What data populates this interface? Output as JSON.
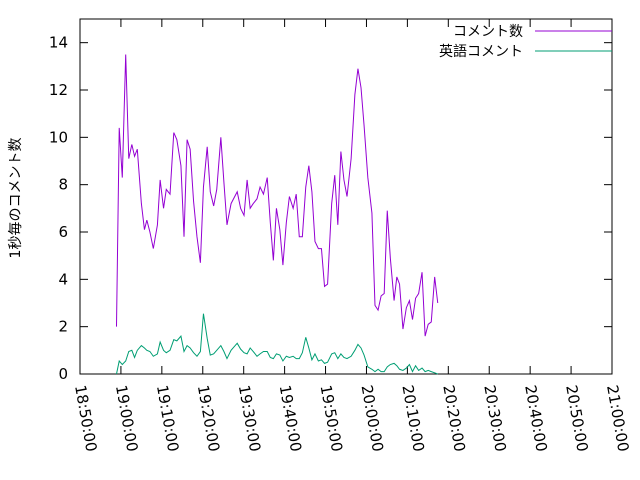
{
  "chart_data": {
    "type": "line",
    "title": "",
    "xlabel": "",
    "ylabel": "1秒毎のコメント数",
    "xlim": [
      "18:50:00",
      "21:00:00"
    ],
    "ylim": [
      0,
      15
    ],
    "x_ticks": [
      "18:50:00",
      "19:00:00",
      "19:10:00",
      "19:20:00",
      "19:30:00",
      "19:40:00",
      "19:50:00",
      "20:00:00",
      "20:10:00",
      "20:20:00",
      "20:30:00",
      "20:40:00",
      "20:50:00",
      "21:00:00"
    ],
    "y_ticks": [
      0,
      2,
      4,
      6,
      8,
      10,
      12,
      14
    ],
    "grid": false,
    "legend_position": "top-right",
    "series": [
      {
        "name": "コメント数",
        "color": "#9400d3",
        "points": [
          [
            "18:58:55",
            2.0
          ],
          [
            "18:59:35",
            10.4
          ],
          [
            "19:00:20",
            8.3
          ],
          [
            "19:01:10",
            13.5
          ],
          [
            "19:01:55",
            9.1
          ],
          [
            "19:02:40",
            9.7
          ],
          [
            "19:03:20",
            9.2
          ],
          [
            "19:04:00",
            9.5
          ],
          [
            "19:05:00",
            7.2
          ],
          [
            "19:05:45",
            6.1
          ],
          [
            "19:06:20",
            6.5
          ],
          [
            "19:07:05",
            6.0
          ],
          [
            "19:07:55",
            5.3
          ],
          [
            "19:08:55",
            6.3
          ],
          [
            "19:09:35",
            8.2
          ],
          [
            "19:10:25",
            7.0
          ],
          [
            "19:11:05",
            7.8
          ],
          [
            "19:12:00",
            7.6
          ],
          [
            "19:12:55",
            10.2
          ],
          [
            "19:13:40",
            9.9
          ],
          [
            "19:14:40",
            8.8
          ],
          [
            "19:15:25",
            5.8
          ],
          [
            "19:16:10",
            9.9
          ],
          [
            "19:16:55",
            9.5
          ],
          [
            "19:17:45",
            7.3
          ],
          [
            "19:18:35",
            5.8
          ],
          [
            "19:19:25",
            4.7
          ],
          [
            "19:20:10",
            7.9
          ],
          [
            "19:21:05",
            9.6
          ],
          [
            "19:21:50",
            7.7
          ],
          [
            "19:22:40",
            7.1
          ],
          [
            "19:23:25",
            7.8
          ],
          [
            "19:24:25",
            10.0
          ],
          [
            "19:25:10",
            8.1
          ],
          [
            "19:25:55",
            6.3
          ],
          [
            "19:26:55",
            7.2
          ],
          [
            "19:28:25",
            7.7
          ],
          [
            "19:29:15",
            7.0
          ],
          [
            "19:30:05",
            6.7
          ],
          [
            "19:30:50",
            8.2
          ],
          [
            "19:31:35",
            7.0
          ],
          [
            "19:32:20",
            7.2
          ],
          [
            "19:33:15",
            7.4
          ],
          [
            "19:34:00",
            7.9
          ],
          [
            "19:34:50",
            7.6
          ],
          [
            "19:35:45",
            8.3
          ],
          [
            "19:36:30",
            6.4
          ],
          [
            "19:37:15",
            4.8
          ],
          [
            "19:38:00",
            7.0
          ],
          [
            "19:38:50",
            6.1
          ],
          [
            "19:39:35",
            4.6
          ],
          [
            "19:40:25",
            6.4
          ],
          [
            "19:41:10",
            7.5
          ],
          [
            "19:42:05",
            7.0
          ],
          [
            "19:42:50",
            7.6
          ],
          [
            "19:43:35",
            5.8
          ],
          [
            "19:44:20",
            5.8
          ],
          [
            "19:45:10",
            7.9
          ],
          [
            "19:45:55",
            8.8
          ],
          [
            "19:46:40",
            7.7
          ],
          [
            "19:47:25",
            5.6
          ],
          [
            "19:48:15",
            5.3
          ],
          [
            "19:49:00",
            5.3
          ],
          [
            "19:49:45",
            3.7
          ],
          [
            "19:50:30",
            3.8
          ],
          [
            "19:51:30",
            7.2
          ],
          [
            "19:52:15",
            8.4
          ],
          [
            "19:53:00",
            6.3
          ],
          [
            "19:53:45",
            9.4
          ],
          [
            "19:54:30",
            8.2
          ],
          [
            "19:55:15",
            7.5
          ],
          [
            "19:56:15",
            9.1
          ],
          [
            "19:57:10",
            11.8
          ],
          [
            "19:57:55",
            12.9
          ],
          [
            "19:58:40",
            12.1
          ],
          [
            "19:59:25",
            10.5
          ],
          [
            "20:00:20",
            8.3
          ],
          [
            "20:01:20",
            6.8
          ],
          [
            "20:02:05",
            2.9
          ],
          [
            "20:02:50",
            2.7
          ],
          [
            "20:03:35",
            3.3
          ],
          [
            "20:04:20",
            3.4
          ],
          [
            "20:05:05",
            6.9
          ],
          [
            "20:05:50",
            4.9
          ],
          [
            "20:06:45",
            3.1
          ],
          [
            "20:07:25",
            4.1
          ],
          [
            "20:08:05",
            3.8
          ],
          [
            "20:08:55",
            1.9
          ],
          [
            "20:09:45",
            2.8
          ],
          [
            "20:10:30",
            3.1
          ],
          [
            "20:11:15",
            2.3
          ],
          [
            "20:12:00",
            3.2
          ],
          [
            "20:12:45",
            3.4
          ],
          [
            "20:13:35",
            4.3
          ],
          [
            "20:14:20",
            1.6
          ],
          [
            "20:15:05",
            2.1
          ],
          [
            "20:15:50",
            2.2
          ],
          [
            "20:16:40",
            4.1
          ],
          [
            "20:17:25",
            3.0
          ]
        ]
      },
      {
        "name": "英語コメント",
        "color": "#009e73",
        "points": [
          [
            "18:58:55",
            0.0
          ],
          [
            "18:59:35",
            0.55
          ],
          [
            "19:00:20",
            0.4
          ],
          [
            "19:01:10",
            0.55
          ],
          [
            "19:01:55",
            0.95
          ],
          [
            "19:02:40",
            1.0
          ],
          [
            "19:03:20",
            0.7
          ],
          [
            "19:04:00",
            1.0
          ],
          [
            "19:05:00",
            1.2
          ],
          [
            "19:05:45",
            1.1
          ],
          [
            "19:06:20",
            1.0
          ],
          [
            "19:07:05",
            0.95
          ],
          [
            "19:07:55",
            0.75
          ],
          [
            "19:08:55",
            0.85
          ],
          [
            "19:09:35",
            1.35
          ],
          [
            "19:10:25",
            1.0
          ],
          [
            "19:11:05",
            0.9
          ],
          [
            "19:12:00",
            1.0
          ],
          [
            "19:12:55",
            1.45
          ],
          [
            "19:13:40",
            1.4
          ],
          [
            "19:14:40",
            1.6
          ],
          [
            "19:15:25",
            0.95
          ],
          [
            "19:16:10",
            1.2
          ],
          [
            "19:16:55",
            1.1
          ],
          [
            "19:17:45",
            0.9
          ],
          [
            "19:18:35",
            0.75
          ],
          [
            "19:19:25",
            0.95
          ],
          [
            "19:20:10",
            2.55
          ],
          [
            "19:21:05",
            1.5
          ],
          [
            "19:21:50",
            0.8
          ],
          [
            "19:22:40",
            0.85
          ],
          [
            "19:23:25",
            1.0
          ],
          [
            "19:24:25",
            1.2
          ],
          [
            "19:25:10",
            0.95
          ],
          [
            "19:25:55",
            0.65
          ],
          [
            "19:26:55",
            1.0
          ],
          [
            "19:28:25",
            1.3
          ],
          [
            "19:29:15",
            1.05
          ],
          [
            "19:30:05",
            0.9
          ],
          [
            "19:30:50",
            0.85
          ],
          [
            "19:31:35",
            1.1
          ],
          [
            "19:32:20",
            0.95
          ],
          [
            "19:33:15",
            0.75
          ],
          [
            "19:34:00",
            0.85
          ],
          [
            "19:34:50",
            0.95
          ],
          [
            "19:35:45",
            0.95
          ],
          [
            "19:36:30",
            0.7
          ],
          [
            "19:37:15",
            0.65
          ],
          [
            "19:38:00",
            0.85
          ],
          [
            "19:38:50",
            0.8
          ],
          [
            "19:39:35",
            0.55
          ],
          [
            "19:40:25",
            0.75
          ],
          [
            "19:41:10",
            0.7
          ],
          [
            "19:42:05",
            0.75
          ],
          [
            "19:42:50",
            0.65
          ],
          [
            "19:43:35",
            0.65
          ],
          [
            "19:44:20",
            0.9
          ],
          [
            "19:45:10",
            1.55
          ],
          [
            "19:45:55",
            1.1
          ],
          [
            "19:46:40",
            0.6
          ],
          [
            "19:47:25",
            0.85
          ],
          [
            "19:48:15",
            0.55
          ],
          [
            "19:49:00",
            0.6
          ],
          [
            "19:49:45",
            0.45
          ],
          [
            "19:50:30",
            0.5
          ],
          [
            "19:51:30",
            0.85
          ],
          [
            "19:52:15",
            0.9
          ],
          [
            "19:53:00",
            0.65
          ],
          [
            "19:53:45",
            0.85
          ],
          [
            "19:54:30",
            0.7
          ],
          [
            "19:55:15",
            0.65
          ],
          [
            "19:56:15",
            0.75
          ],
          [
            "19:57:10",
            1.0
          ],
          [
            "19:57:55",
            1.25
          ],
          [
            "19:58:40",
            1.1
          ],
          [
            "19:59:25",
            0.8
          ],
          [
            "20:00:20",
            0.3
          ],
          [
            "20:01:20",
            0.2
          ],
          [
            "20:02:05",
            0.1
          ],
          [
            "20:02:50",
            0.2
          ],
          [
            "20:03:35",
            0.1
          ],
          [
            "20:04:20",
            0.1
          ],
          [
            "20:05:05",
            0.3
          ],
          [
            "20:05:50",
            0.4
          ],
          [
            "20:06:45",
            0.45
          ],
          [
            "20:07:25",
            0.35
          ],
          [
            "20:08:05",
            0.2
          ],
          [
            "20:08:55",
            0.15
          ],
          [
            "20:09:45",
            0.25
          ],
          [
            "20:10:30",
            0.4
          ],
          [
            "20:11:15",
            0.1
          ],
          [
            "20:12:00",
            0.35
          ],
          [
            "20:12:45",
            0.15
          ],
          [
            "20:13:35",
            0.25
          ],
          [
            "20:14:20",
            0.1
          ],
          [
            "20:15:05",
            0.15
          ],
          [
            "20:15:50",
            0.1
          ],
          [
            "20:16:40",
            0.05
          ],
          [
            "20:17:25",
            0.0
          ]
        ]
      }
    ]
  }
}
